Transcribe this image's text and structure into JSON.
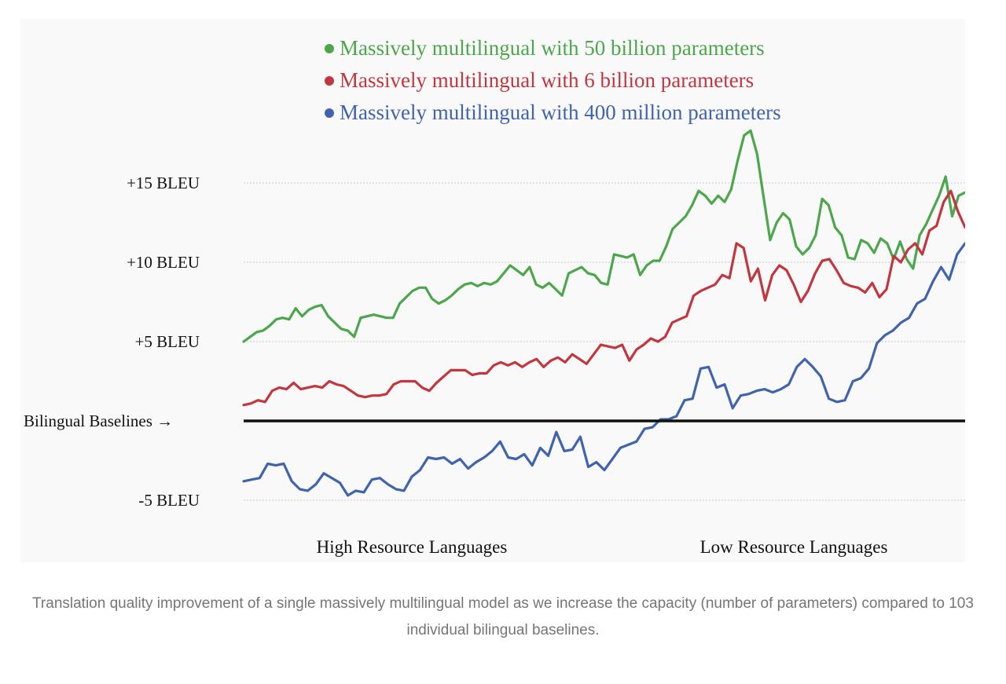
{
  "chart_data": {
    "type": "line",
    "legend": {
      "placement": "top-center"
    },
    "series": [
      {
        "name": "Massively multilingual with 50 billion parameters",
        "color": "#4ca64c",
        "values": [
          5,
          5.3,
          5.6,
          5.7,
          6,
          6.4,
          6.5,
          6.4,
          7.1,
          6.6,
          7,
          7.2,
          7.3,
          6.6,
          6.2,
          5.8,
          5.7,
          5.3,
          6.5,
          6.6,
          6.7,
          6.6,
          6.5,
          6.5,
          7.4,
          7.8,
          8.2,
          8.4,
          8.4,
          7.7,
          7.4,
          7.6,
          7.9,
          8.3,
          8.6,
          8.7,
          8.5,
          8.7,
          8.6,
          8.8,
          9.3,
          9.8,
          9.5,
          9.2,
          9.7,
          8.6,
          8.4,
          8.7,
          8.3,
          7.9,
          9.3,
          9.5,
          9.7,
          9.3,
          9.2,
          8.7,
          8.6,
          10.5,
          10.4,
          10.3,
          10.5,
          9.2,
          9.8,
          10.1,
          10.1,
          11,
          12.1,
          12.5,
          12.9,
          13.6,
          14.5,
          14.2,
          13.7,
          14.2,
          13.8,
          14.6,
          16.4,
          18,
          18.3,
          16.8,
          14.1,
          11.4,
          12.5,
          13.1,
          12.7,
          11,
          10.5,
          10.9,
          11.7,
          14,
          13.6,
          12.2,
          11.7,
          10.3,
          10.2,
          11.4,
          11.2,
          10.6,
          11.5,
          11.2,
          10.2,
          11.3,
          10.2,
          9.6,
          11.7,
          12.4,
          13.3,
          14.2,
          15.4,
          12.9,
          14.2,
          14.4
        ]
      },
      {
        "name": "Massively multilingual with 6 billion parameters",
        "color": "#c2363f",
        "values": [
          1,
          1.1,
          1.3,
          1.2,
          1.9,
          2.1,
          2,
          2.4,
          2,
          2.1,
          2.2,
          2.1,
          2.5,
          2.3,
          2.2,
          1.9,
          1.6,
          1.5,
          1.6,
          1.6,
          1.7,
          2.3,
          2.5,
          2.5,
          2.5,
          2.1,
          1.9,
          2.4,
          2.8,
          3.2,
          3.2,
          3.2,
          2.9,
          3,
          3,
          3.5,
          3.7,
          3.5,
          3.7,
          3.4,
          3.7,
          3.9,
          3.4,
          3.8,
          4,
          3.7,
          4.2,
          3.9,
          3.6,
          4.2,
          4.8,
          4.7,
          4.6,
          4.8,
          3.8,
          4.5,
          4.8,
          5.2,
          5,
          5.3,
          6.2,
          6.4,
          6.6,
          7.9,
          8.2,
          8.4,
          8.6,
          9.2,
          9,
          11.2,
          10.9,
          8.8,
          9.6,
          7.6,
          9.2,
          9.8,
          9.5,
          8.6,
          7.5,
          8.2,
          9.3,
          10.1,
          10.2,
          9.5,
          8.7,
          8.5,
          8.4,
          8.1,
          8.7,
          7.8,
          8.3,
          10.4,
          10,
          10.8,
          11.2,
          10.5,
          12,
          12.3,
          13.8,
          14.5,
          13.2,
          12.2
        ]
      },
      {
        "name": "Massively multilingual with 400 million parameters",
        "color": "#3f64ad",
        "values": [
          -3.8,
          -3.7,
          -3.6,
          -2.7,
          -2.8,
          -2.7,
          -3.8,
          -4.3,
          -4.4,
          -4,
          -3.3,
          -3.6,
          -3.9,
          -4.7,
          -4.4,
          -4.5,
          -3.7,
          -3.6,
          -4,
          -4.3,
          -4.4,
          -3.5,
          -3.1,
          -2.3,
          -2.4,
          -2.3,
          -2.7,
          -2.4,
          -3,
          -2.6,
          -2.3,
          -1.9,
          -1.3,
          -2.3,
          -2.4,
          -2.1,
          -2.8,
          -1.7,
          -2.2,
          -0.7,
          -1.9,
          -1.8,
          -1,
          -2.9,
          -2.6,
          -3.1,
          -2.4,
          -1.7,
          -1.5,
          -1.3,
          -0.5,
          -0.4,
          0.1,
          0.1,
          0.3,
          1.3,
          1.4,
          3.3,
          3.4,
          2.1,
          2.3,
          0.8,
          1.6,
          1.7,
          1.9,
          2,
          1.8,
          2,
          2.3,
          3.4,
          3.9,
          3.4,
          2.8,
          1.4,
          1.2,
          1.3,
          2.5,
          2.7,
          3.3,
          4.9,
          5.4,
          5.7,
          6.2,
          6.5,
          7.4,
          7.7,
          8.8,
          9.7,
          8.9,
          10.5,
          11.2
        ]
      }
    ],
    "y_ticks": [
      {
        "value": 15,
        "label": "+15 BLEU"
      },
      {
        "value": 10,
        "label": "+10 BLEU"
      },
      {
        "value": 5,
        "label": "+5 BLEU"
      },
      {
        "value": -5,
        "label": "-5 BLEU"
      }
    ],
    "baseline": {
      "value": 0,
      "label": "Bilingual Baselines →"
    },
    "x_group_labels": [
      "High Resource Languages",
      "Low Resource Languages"
    ],
    "ylim": [
      -7,
      20
    ],
    "grid": true
  },
  "caption": "Translation quality improvement of a single massively multilingual model as we increase the capacity (number of parameters) compared to 103 individual bilingual baselines."
}
